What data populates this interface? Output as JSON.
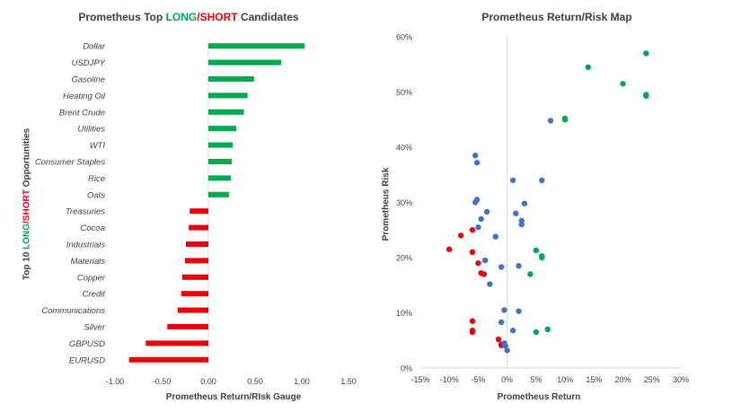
{
  "colors": {
    "long": "#00A84F",
    "short": "#E8000B",
    "neutral": "#4472C4",
    "axis": "#D9D9D9",
    "grid": "#E6E6E6",
    "text": "#404040"
  },
  "chart_data": [
    {
      "type": "bar",
      "orientation": "horizontal",
      "title": {
        "prefix": "Prometheus Top ",
        "long": "LONG",
        "slash": "/",
        "short": "SHORT",
        "suffix": " Candidates"
      },
      "xlabel": "Prometheus Return/RIsk Gauge",
      "ylabel": {
        "prefix": "Top 10 ",
        "long": "LONG",
        "slash": "/",
        "short": "SHORT",
        "suffix": " Opportunities"
      },
      "xlim": [
        -1.0,
        1.5
      ],
      "xticks": [
        "-1.00",
        "-0.50",
        "0.00",
        "0.50",
        "1.00",
        "1.50"
      ],
      "grid": false,
      "categories": [
        "Dollar",
        "USDJPY",
        "Gasoline",
        "Heating Oil",
        "Brent Crude",
        "Utilities",
        "WTI",
        "Consumer Staples",
        "Rice",
        "Oats",
        "Treasuries",
        "Cocoa",
        "Industrials",
        "Materials",
        "Copper",
        "Credit",
        "Communications",
        "Silver",
        "GBPUSD",
        "EURUSD"
      ],
      "values": [
        1.03,
        0.78,
        0.49,
        0.42,
        0.38,
        0.3,
        0.26,
        0.25,
        0.24,
        0.22,
        -0.2,
        -0.21,
        -0.24,
        -0.25,
        -0.28,
        -0.29,
        -0.33,
        -0.44,
        -0.67,
        -0.85
      ]
    },
    {
      "type": "scatter",
      "title": "Prometheus Return/Risk Map",
      "xlabel": "Prometheus Return",
      "ylabel": "Prometheus Risk",
      "xlim": [
        -15,
        30
      ],
      "ylim": [
        0,
        60
      ],
      "xticks": [
        "-15%",
        "-10%",
        "-5%",
        "0%",
        "5%",
        "10%",
        "15%",
        "20%",
        "25%",
        "30%"
      ],
      "yticks": [
        "0%",
        "10%",
        "20%",
        "30%",
        "40%",
        "50%",
        "60%"
      ],
      "grid": false,
      "series": [
        {
          "color": "green",
          "points": [
            [
              24,
              57
            ],
            [
              14,
              54.5
            ],
            [
              20,
              51.5
            ],
            [
              24,
              49.5
            ],
            [
              24,
              49.3
            ],
            [
              10,
              45
            ],
            [
              10,
              45.2
            ],
            [
              5,
              21.3
            ],
            [
              6,
              20
            ],
            [
              6,
              20.3
            ],
            [
              4,
              17
            ],
            [
              7,
              7
            ],
            [
              5,
              6.5
            ]
          ]
        },
        {
          "color": "red",
          "points": [
            [
              -8,
              24
            ],
            [
              -6,
              25
            ],
            [
              -10,
              21.5
            ],
            [
              -6,
              21
            ],
            [
              -5,
              19
            ],
            [
              -4.5,
              17.2
            ],
            [
              -4,
              17
            ],
            [
              -6,
              8.5
            ],
            [
              -6,
              6.8
            ],
            [
              -6,
              6.5
            ],
            [
              -1.5,
              5.2
            ],
            [
              -1,
              4.1
            ],
            [
              -1,
              4.3
            ]
          ]
        },
        {
          "color": "blue",
          "points": [
            [
              7.5,
              44.8
            ],
            [
              -5.5,
              38.5
            ],
            [
              -5.2,
              37.2
            ],
            [
              1,
              34
            ],
            [
              6,
              34
            ],
            [
              -5.2,
              30.5
            ],
            [
              -5.5,
              30
            ],
            [
              3,
              29.8
            ],
            [
              -3.5,
              28.3
            ],
            [
              1.5,
              28
            ],
            [
              -4.5,
              27
            ],
            [
              2.5,
              26.7
            ],
            [
              2.5,
              26
            ],
            [
              -5,
              25.5
            ],
            [
              -2,
              23.8
            ],
            [
              -3.8,
              19.5
            ],
            [
              2,
              18.5
            ],
            [
              -1,
              18.3
            ],
            [
              -3,
              15.2
            ],
            [
              -0.5,
              10.5
            ],
            [
              2,
              10.3
            ],
            [
              -1,
              8.3
            ],
            [
              1,
              6.8
            ],
            [
              -0.5,
              4.5
            ],
            [
              -0.3,
              4
            ],
            [
              0,
              3.2
            ]
          ]
        }
      ]
    }
  ]
}
